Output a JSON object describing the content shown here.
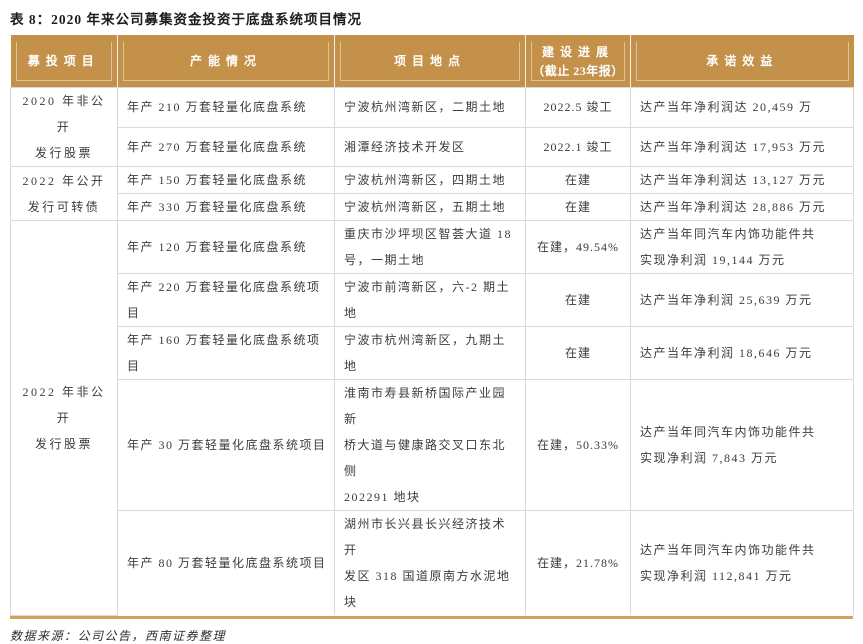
{
  "title": "表 8：2020 年来公司募集资金投资于底盘系统项目情况",
  "source_note": "数据来源：公司公告，西南证券整理",
  "colors": {
    "header_bg": "#C3914A",
    "bottom_bar": "#D5A05C"
  },
  "table": {
    "headers": {
      "project": "募投项目",
      "capacity": "产能情况",
      "location": "项目地点",
      "progress_line1": "建设进展",
      "progress_line2": "（截止 23年报）",
      "benefit": "承诺效益"
    },
    "groups": [
      {
        "label": "2020 年非公开\n发行股票"
      },
      {
        "label": "2022 年公开\n发行可转债"
      },
      {
        "label": "2022 年非公开\n发行股票"
      }
    ],
    "rows": [
      {
        "capacity": "年产 210 万套轻量化底盘系统",
        "location": "宁波杭州湾新区，二期土地",
        "progress": "2022.5 竣工",
        "benefit": "达产当年净利润达 20,459 万"
      },
      {
        "capacity": "年产 270 万套轻量化底盘系统",
        "location": "湘潭经济技术开发区",
        "progress": "2022.1 竣工",
        "benefit": "达产当年净利润达 17,953 万元"
      },
      {
        "capacity": "年产 150 万套轻量化底盘系统",
        "location": "宁波杭州湾新区，四期土地",
        "progress": "在建",
        "benefit": "达产当年净利润达 13,127 万元"
      },
      {
        "capacity": "年产 330 万套轻量化底盘系统",
        "location": "宁波杭州湾新区，五期土地",
        "progress": "在建",
        "benefit": "达产当年净利润达 28,886 万元"
      },
      {
        "capacity": "年产 120 万套轻量化底盘系统",
        "location": "重庆市沙坪坝区智荟大道 18\n号，一期土地",
        "progress": "在建，49.54%",
        "benefit": "达产当年同汽车内饰功能件共\n实现净利润 19,144 万元"
      },
      {
        "capacity": "年产 220 万套轻量化底盘系统项目",
        "location": "宁波市前湾新区，六-2 期土地",
        "progress": "在建",
        "benefit": "达产当年净利润 25,639 万元"
      },
      {
        "capacity": "年产 160 万套轻量化底盘系统项目",
        "location": "宁波市杭州湾新区，九期土地",
        "progress": "在建",
        "benefit": "达产当年净利润 18,646 万元"
      },
      {
        "capacity": "年产 30 万套轻量化底盘系统项目",
        "location": "淮南市寿县新桥国际产业园新\n桥大道与健康路交叉口东北侧\n202291 地块",
        "progress": "在建，50.33%",
        "benefit": "达产当年同汽车内饰功能件共\n实现净利润 7,843 万元"
      },
      {
        "capacity": "年产 80 万套轻量化底盘系统项目",
        "location": "湖州市长兴县长兴经济技术开\n发区 318 国道原南方水泥地块",
        "progress": "在建，21.78%",
        "benefit": "达产当年同汽车内饰功能件共\n实现净利润 112,841 万元"
      }
    ]
  }
}
